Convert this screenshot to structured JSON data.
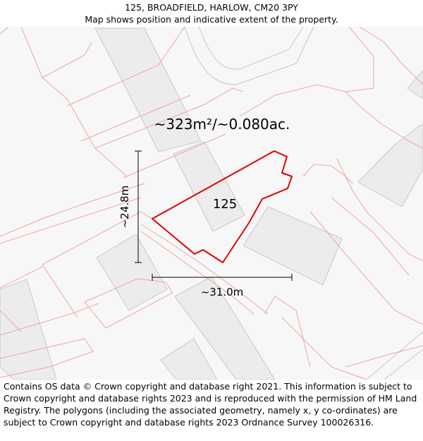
{
  "header": {
    "address": "125, BROADFIELD, HARLOW, CM20 3PY",
    "subtitle": "Map shows position and indicative extent of the property."
  },
  "map": {
    "area_label": "~323m²/~0.080ac.",
    "plot_label": "125",
    "height_label": "~24.8m",
    "width_label": "~31.0m",
    "colors": {
      "background": "#f7f7f7",
      "building_fill": "#ececec",
      "building_stroke": "#c9c9c9",
      "boundary_line": "#f2a3a3",
      "road_outline": "#c8c8c8",
      "property_outline": "#e00000",
      "dimension_line": "#000000"
    }
  },
  "footer": {
    "attribution": "Contains OS data © Crown copyright and database right 2021. This information is subject to Crown copyright and database rights 2023 and is reproduced with the permission of HM Land Registry. The polygons (including the associated geometry, namely x, y co-ordinates) are subject to Crown copyright and database rights 2023 Ordnance Survey 100026316."
  }
}
